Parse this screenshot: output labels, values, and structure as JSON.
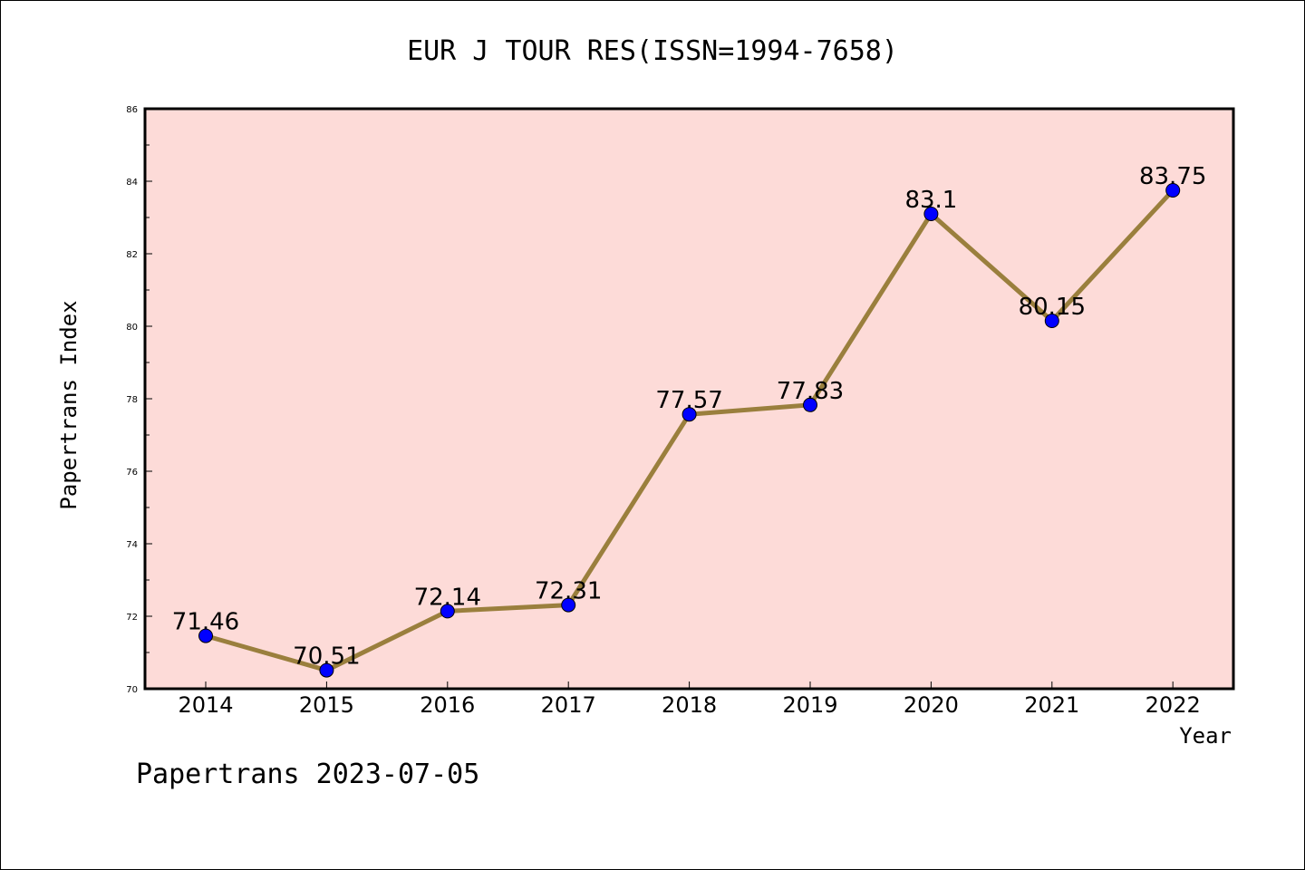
{
  "chart_data": {
    "type": "line",
    "title": "EUR J TOUR RES(ISSN=1994-7658)",
    "xlabel": "Year",
    "ylabel": "Papertrans Index",
    "categories": [
      "2014",
      "2015",
      "2016",
      "2017",
      "2018",
      "2019",
      "2020",
      "2021",
      "2022"
    ],
    "series": [
      {
        "values": [
          71.46,
          70.51,
          72.14,
          72.31,
          77.57,
          77.83,
          83.1,
          80.15,
          83.75
        ],
        "labels": [
          "71.46",
          "70.51",
          "72.14",
          "72.31",
          "77.57",
          "77.83",
          "83.1",
          "80.15",
          "83.75"
        ]
      }
    ],
    "ylim": [
      70,
      86
    ],
    "yticks": [
      "70",
      "72",
      "74",
      "76",
      "78",
      "80",
      "82",
      "84",
      "86"
    ],
    "grid": false,
    "footer": "Papertrans 2023-07-05",
    "colors": {
      "plot_background": "#fddbd8",
      "line": "#9a7f3d",
      "marker": "#0000ff",
      "frame": "#000000"
    }
  }
}
